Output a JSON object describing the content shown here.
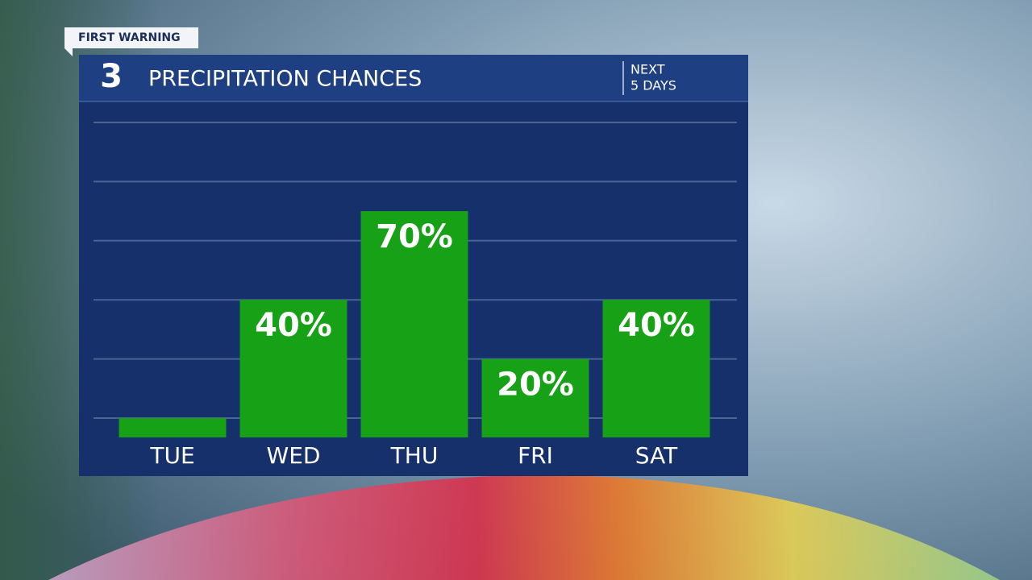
{
  "chart_data": {
    "type": "bar",
    "badge": "FIRST WARNING",
    "logo": "3",
    "title": "PRECIPITATION CHANCES",
    "subtitle": [
      "NEXT",
      "5 DAYS"
    ],
    "categories": [
      "TUE",
      "WED",
      "THU",
      "FRI",
      "SAT"
    ],
    "values": [
      0,
      40,
      70,
      20,
      40
    ],
    "value_labels": [
      null,
      "40%",
      "70%",
      "20%",
      "40%"
    ],
    "color": "#17a117",
    "ylim": [
      0,
      100
    ],
    "yticks": [
      0,
      20,
      40,
      60,
      80,
      100
    ],
    "grid": true
  }
}
